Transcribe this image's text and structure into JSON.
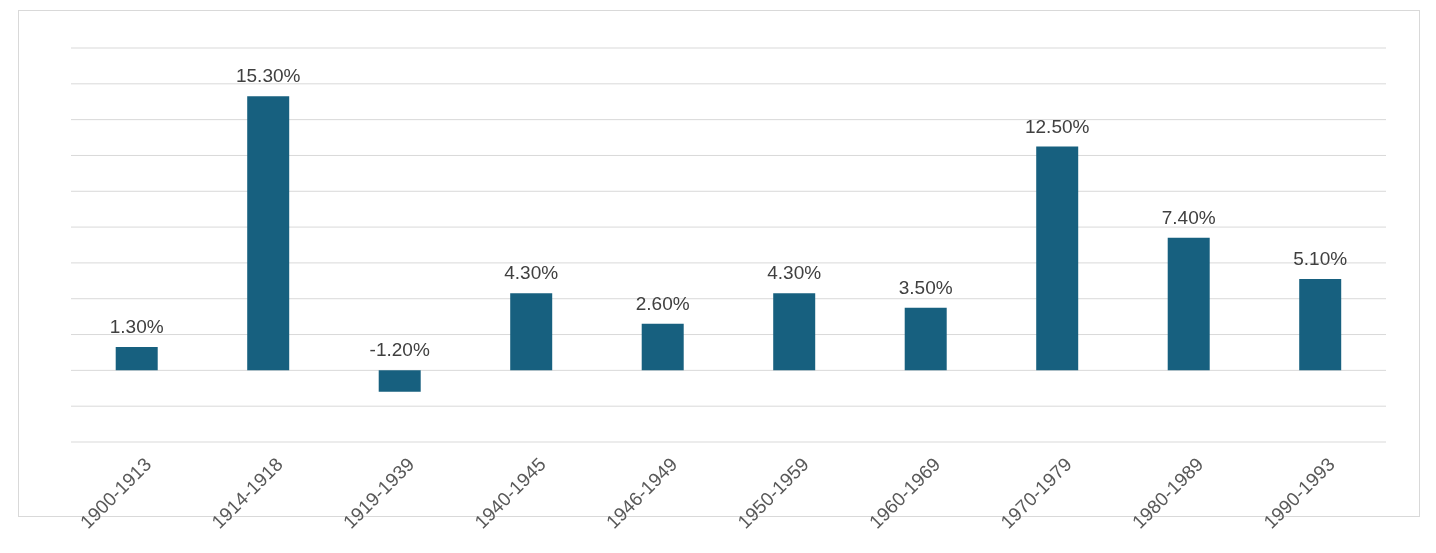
{
  "chart_data": {
    "type": "bar",
    "categories": [
      "1900-1913",
      "1914-1918",
      "1919-1939",
      "1940-1945",
      "1946-1949",
      "1950-1959",
      "1960-1969",
      "1970-1979",
      "1980-1989",
      "1990-1993"
    ],
    "values": [
      1.3,
      15.3,
      -1.2,
      4.3,
      2.6,
      4.3,
      3.5,
      12.5,
      7.4,
      5.1
    ],
    "value_labels": [
      "1.30%",
      "15.30%",
      "-1.20%",
      "4.30%",
      "2.60%",
      "4.30%",
      "3.50%",
      "12.50%",
      "7.40%",
      "5.10%"
    ],
    "color": "#17607f",
    "ylim": [
      -4,
      18
    ],
    "yticks": [
      {
        "value": -4,
        "label": null
      },
      {
        "value": -2,
        "label": null
      },
      {
        "value": 0,
        "label": null
      },
      {
        "value": 2,
        "label": null
      },
      {
        "value": 4,
        "label": null
      },
      {
        "value": 6,
        "label": null
      },
      {
        "value": 8,
        "label": null
      },
      {
        "value": 10,
        "label": null
      },
      {
        "value": 12,
        "label": null
      },
      {
        "value": 14,
        "label": null
      },
      {
        "value": 16,
        "label": null
      },
      {
        "value": 18,
        "label": null
      }
    ],
    "tick_labels": "x",
    "grid": "y",
    "legend": false
  }
}
